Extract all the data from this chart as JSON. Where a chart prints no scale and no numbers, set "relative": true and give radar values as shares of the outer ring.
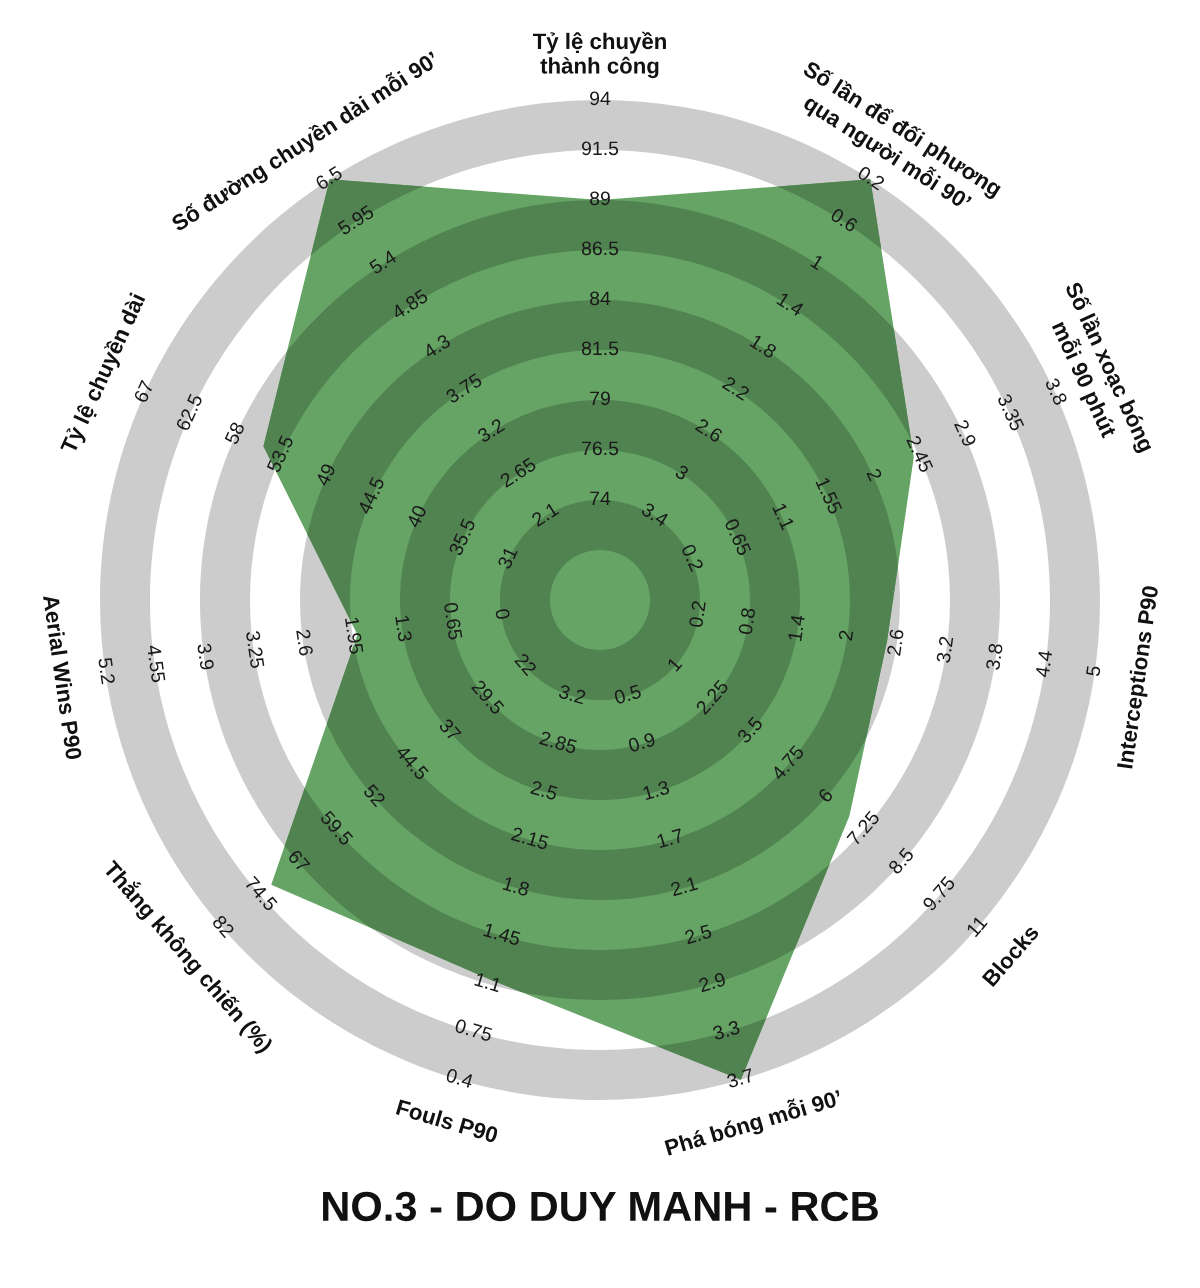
{
  "chart_data": {
    "type": "radar",
    "title": "NO.3 - DO DUY MANH - RCB",
    "relative": true,
    "grid": true,
    "categories": [
      "Tỷ lệ chuyền\nthành công",
      "Số lần để đối phương\nqua người mỗi 90’",
      "Số lần xoạc bóng\nmỗi 90 phút",
      "Interceptions P90",
      "Blocks",
      "Phá bóng mỗi 90’",
      "Fouls P90",
      "Thắng không chiến (%)",
      "Aerial Wins P90",
      "Tỷ lệ chuyền dài",
      "Số đường chuyền dài mỗi 90’"
    ],
    "series": [
      {
        "color": "#65a465",
        "values": [
          0.8,
          1.0,
          0.69,
          0.58,
          0.66,
          1.0,
          0.79,
          0.87,
          0.49,
          0.74,
          1.0
        ]
      }
    ],
    "annotations": [
      {
        "text": "74",
        "x": "Tỷ lệ chuyền\nthành công"
      },
      {
        "text": "76.5",
        "x": "Tỷ lệ chuyền\nthành công"
      },
      {
        "text": "79",
        "x": "Tỷ lệ chuyền\nthành công"
      },
      {
        "text": "81.5",
        "x": "Tỷ lệ chuyền\nthành công"
      },
      {
        "text": "84",
        "x": "Tỷ lệ chuyền\nthành công"
      },
      {
        "text": "86.5",
        "x": "Tỷ lệ chuyền\nthành công"
      },
      {
        "text": "89",
        "x": "Tỷ lệ chuyền\nthành công"
      },
      {
        "text": "91.5",
        "x": "Tỷ lệ chuyền\nthành công"
      },
      {
        "text": "94",
        "x": "Tỷ lệ chuyền\nthành công"
      },
      {
        "text": "3.4",
        "x": "Số lần để đối phương\nqua người mỗi 90’"
      },
      {
        "text": "3",
        "x": "Số lần để đối phương\nqua người mỗi 90’"
      },
      {
        "text": "2.6",
        "x": "Số lần để đối phương\nqua người mỗi 90’"
      },
      {
        "text": "2.2",
        "x": "Số lần để đối phương\nqua người mỗi 90’"
      },
      {
        "text": "1.8",
        "x": "Số lần để đối phương\nqua người mỗi 90’"
      },
      {
        "text": "1.4",
        "x": "Số lần để đối phương\nqua người mỗi 90’"
      },
      {
        "text": "1",
        "x": "Số lần để đối phương\nqua người mỗi 90’"
      },
      {
        "text": "0.6",
        "x": "Số lần để đối phương\nqua người mỗi 90’"
      },
      {
        "text": "0.2",
        "x": "Số lần để đối phương\nqua người mỗi 90’"
      },
      {
        "text": "0.2",
        "x": "Số lần xoạc bóng\nmỗi 90 phút"
      },
      {
        "text": "0.65",
        "x": "Số lần xoạc bóng\nmỗi 90 phút"
      },
      {
        "text": "1.1",
        "x": "Số lần xoạc bóng\nmỗi 90 phút"
      },
      {
        "text": "1.55",
        "x": "Số lần xoạc bóng\nmỗi 90 phút"
      },
      {
        "text": "2",
        "x": "Số lần xoạc bóng\nmỗi 90 phút"
      },
      {
        "text": "2.45",
        "x": "Số lần xoạc bóng\nmỗi 90 phút"
      },
      {
        "text": "2.9",
        "x": "Số lần xoạc bóng\nmỗi 90 phút"
      },
      {
        "text": "3.35",
        "x": "Số lần xoạc bóng\nmỗi 90 phút"
      },
      {
        "text": "3.8",
        "x": "Số lần xoạc bóng\nmỗi 90 phút"
      },
      {
        "text": "0.2",
        "x": "Interceptions P90"
      },
      {
        "text": "0.8",
        "x": "Interceptions P90"
      },
      {
        "text": "1.4",
        "x": "Interceptions P90"
      },
      {
        "text": "2",
        "x": "Interceptions P90"
      },
      {
        "text": "2.6",
        "x": "Interceptions P90"
      },
      {
        "text": "3.2",
        "x": "Interceptions P90"
      },
      {
        "text": "3.8",
        "x": "Interceptions P90"
      },
      {
        "text": "4.4",
        "x": "Interceptions P90"
      },
      {
        "text": "5",
        "x": "Interceptions P90"
      },
      {
        "text": "1",
        "x": "Blocks"
      },
      {
        "text": "2.25",
        "x": "Blocks"
      },
      {
        "text": "3.5",
        "x": "Blocks"
      },
      {
        "text": "4.75",
        "x": "Blocks"
      },
      {
        "text": "6",
        "x": "Blocks"
      },
      {
        "text": "7.25",
        "x": "Blocks"
      },
      {
        "text": "8.5",
        "x": "Blocks"
      },
      {
        "text": "9.75",
        "x": "Blocks"
      },
      {
        "text": "11",
        "x": "Blocks"
      },
      {
        "text": "0.5",
        "x": "Phá bóng mỗi 90’"
      },
      {
        "text": "0.9",
        "x": "Phá bóng mỗi 90’"
      },
      {
        "text": "1.3",
        "x": "Phá bóng mỗi 90’"
      },
      {
        "text": "1.7",
        "x": "Phá bóng mỗi 90’"
      },
      {
        "text": "2.1",
        "x": "Phá bóng mỗi 90’"
      },
      {
        "text": "2.5",
        "x": "Phá bóng mỗi 90’"
      },
      {
        "text": "2.9",
        "x": "Phá bóng mỗi 90’"
      },
      {
        "text": "3.3",
        "x": "Phá bóng mỗi 90’"
      },
      {
        "text": "3.7",
        "x": "Phá bóng mỗi 90’"
      },
      {
        "text": "3.2",
        "x": "Fouls P90"
      },
      {
        "text": "2.85",
        "x": "Fouls P90"
      },
      {
        "text": "2.5",
        "x": "Fouls P90"
      },
      {
        "text": "2.15",
        "x": "Fouls P90"
      },
      {
        "text": "1.8",
        "x": "Fouls P90"
      },
      {
        "text": "1.45",
        "x": "Fouls P90"
      },
      {
        "text": "1.1",
        "x": "Fouls P90"
      },
      {
        "text": "0.75",
        "x": "Fouls P90"
      },
      {
        "text": "0.4",
        "x": "Fouls P90"
      },
      {
        "text": "22",
        "x": "Thắng không chiến (%)"
      },
      {
        "text": "29.5",
        "x": "Thắng không chiến (%)"
      },
      {
        "text": "37",
        "x": "Thắng không chiến (%)"
      },
      {
        "text": "44.5",
        "x": "Thắng không chiến (%)"
      },
      {
        "text": "52",
        "x": "Thắng không chiến (%)"
      },
      {
        "text": "59.5",
        "x": "Thắng không chiến (%)"
      },
      {
        "text": "67",
        "x": "Thắng không chiến (%)"
      },
      {
        "text": "74.5",
        "x": "Thắng không chiến (%)"
      },
      {
        "text": "82",
        "x": "Thắng không chiến (%)"
      },
      {
        "text": "0",
        "x": "Aerial Wins P90"
      },
      {
        "text": "0.65",
        "x": "Aerial Wins P90"
      },
      {
        "text": "1.3",
        "x": "Aerial Wins P90"
      },
      {
        "text": "1.95",
        "x": "Aerial Wins P90"
      },
      {
        "text": "2.6",
        "x": "Aerial Wins P90"
      },
      {
        "text": "3.25",
        "x": "Aerial Wins P90"
      },
      {
        "text": "3.9",
        "x": "Aerial Wins P90"
      },
      {
        "text": "4.55",
        "x": "Aerial Wins P90"
      },
      {
        "text": "5.2",
        "x": "Aerial Wins P90"
      },
      {
        "text": "31",
        "x": "Tỷ lệ chuyền dài"
      },
      {
        "text": "35.5",
        "x": "Tỷ lệ chuyền dài"
      },
      {
        "text": "40",
        "x": "Tỷ lệ chuyền dài"
      },
      {
        "text": "44.5",
        "x": "Tỷ lệ chuyền dài"
      },
      {
        "text": "49",
        "x": "Tỷ lệ chuyền dài"
      },
      {
        "text": "53.5",
        "x": "Tỷ lệ chuyền dài"
      },
      {
        "text": "58",
        "x": "Tỷ lệ chuyền dài"
      },
      {
        "text": "62.5",
        "x": "Tỷ lệ chuyền dài"
      },
      {
        "text": "67",
        "x": "Tỷ lệ chuyền dài"
      },
      {
        "text": "2.1",
        "x": "Số đường chuyền dài mỗi 90’"
      },
      {
        "text": "2.65",
        "x": "Số đường chuyền dài mỗi 90’"
      },
      {
        "text": "3.2",
        "x": "Số đường chuyền dài mỗi 90’"
      },
      {
        "text": "3.75",
        "x": "Số đường chuyền dài mỗi 90’"
      },
      {
        "text": "4.3",
        "x": "Số đường chuyền dài mỗi 90’"
      },
      {
        "text": "4.85",
        "x": "Số đường chuyền dài mỗi 90’"
      },
      {
        "text": "5.4",
        "x": "Số đường chuyền dài mỗi 90’"
      },
      {
        "text": "5.95",
        "x": "Số đường chuyền dài mỗi 90’"
      },
      {
        "text": "6.5",
        "x": "Số đường chuyền dài mỗi 90’"
      }
    ]
  }
}
